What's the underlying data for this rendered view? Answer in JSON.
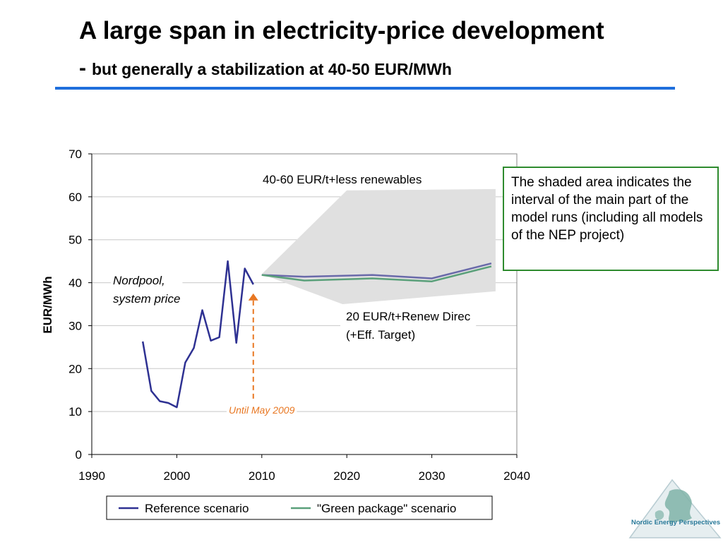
{
  "slide": {
    "title": "A large span in electricity-price development",
    "subtitle_dash": "-",
    "subtitle": "but generally a stabilization at 40-50 EUR/MWh",
    "note": "The shaded area indicates the interval of the main part of the model runs (including all models of the NEP project)",
    "logo_text": "Nordic Energy Perspectives",
    "accent_color": "#1f6fdc",
    "note_border_color": "#2e8b2e"
  },
  "chart_data": {
    "type": "line",
    "ylabel": "EUR/MWh",
    "xlabel": "",
    "xlim": [
      1990,
      2040
    ],
    "ylim": [
      0,
      70
    ],
    "xticks": [
      1990,
      2000,
      2010,
      2020,
      2030,
      2040
    ],
    "yticks": [
      0,
      10,
      20,
      30,
      40,
      50,
      60,
      70
    ],
    "grid": "horizontal",
    "legend_position": "bottom",
    "series": [
      {
        "name": "Reference scenario",
        "color": "#2e3192",
        "points": [
          [
            1996,
            26.3
          ],
          [
            1997,
            14.8
          ],
          [
            1998,
            12.4
          ],
          [
            1999,
            12.0
          ],
          [
            2000,
            11.0
          ],
          [
            2001,
            21.4
          ],
          [
            2002,
            24.8
          ],
          [
            2003,
            33.6
          ],
          [
            2004,
            26.5
          ],
          [
            2005,
            27.3
          ],
          [
            2006,
            45.0
          ],
          [
            2007,
            26.0
          ],
          [
            2008,
            43.3
          ],
          [
            2009,
            39.6
          ]
        ]
      },
      {
        "name": "Reference scenario",
        "color": "#6a6aaa",
        "points": [
          [
            2010,
            41.8
          ],
          [
            2015,
            41.4
          ],
          [
            2023,
            41.8
          ],
          [
            2030,
            41.0
          ],
          [
            2037,
            44.5
          ]
        ]
      },
      {
        "name": "\"Green package\" scenario",
        "color": "#5aa07a",
        "points": [
          [
            2010,
            41.8
          ],
          [
            2015,
            40.5
          ],
          [
            2023,
            41.0
          ],
          [
            2030,
            40.3
          ],
          [
            2037,
            43.8
          ]
        ]
      }
    ],
    "shaded_range": {
      "color": "#e0e0e0",
      "upper": [
        [
          2010,
          42.0
        ],
        [
          2020,
          61.5
        ],
        [
          2037.5,
          61.8
        ]
      ],
      "lower": [
        [
          2010,
          42.0
        ],
        [
          2019.5,
          35.0
        ],
        [
          2037.5,
          38.0
        ]
      ]
    },
    "annotations": {
      "upper_label": "40-60 EUR/t+less renewables",
      "lower_label_line1": "20 EUR/t+Renew Direc",
      "lower_label_line2": "(+Eff. Target)",
      "nordpool_line1": "Nordpool,",
      "nordpool_line2": "system price",
      "until_label": "Until May 2009",
      "until_color": "#e87722",
      "until_year": 2009,
      "until_range": [
        13,
        37.5
      ]
    },
    "legend": [
      {
        "label": "Reference scenario",
        "color": "#2e3192"
      },
      {
        "label": "\"Green package\" scenario",
        "color": "#5aa07a"
      }
    ]
  }
}
